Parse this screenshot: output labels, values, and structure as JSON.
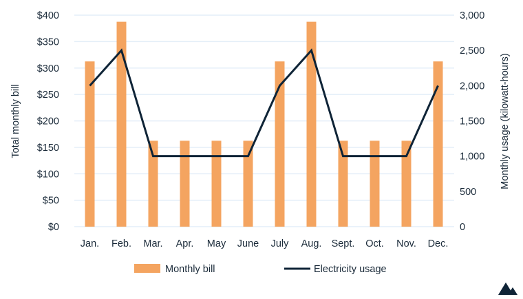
{
  "chart_data": {
    "type": "bar+line",
    "categories": [
      "Jan.",
      "Feb.",
      "Mar.",
      "Apr.",
      "May",
      "June",
      "July",
      "Aug.",
      "Sept.",
      "Oct.",
      "Nov.",
      "Dec."
    ],
    "series": [
      {
        "name": "Monthly bill",
        "type": "bar",
        "axis": "left",
        "color": "#f4a460",
        "values": [
          312.5,
          387.5,
          162.5,
          162.5,
          162.5,
          162.5,
          312.5,
          387.5,
          162.5,
          162.5,
          162.5,
          312.5
        ]
      },
      {
        "name": "Electricity usage",
        "type": "line",
        "axis": "right",
        "color": "#0f2437",
        "values": [
          2000,
          2500,
          1000,
          1000,
          1000,
          1000,
          2000,
          2500,
          1000,
          1000,
          1000,
          2000
        ]
      }
    ],
    "ylabel": "Total monthly bill",
    "y2label": "Monthly usage (kilowatt-hours)",
    "ylim": [
      0,
      400
    ],
    "y2lim": [
      0,
      3000
    ],
    "yticks": [
      "$0",
      "$50",
      "$100",
      "$150",
      "$200",
      "$250",
      "$300",
      "$350",
      "$400"
    ],
    "y2ticks": [
      "0",
      "500",
      "1,000",
      "1,500",
      "2,000",
      "2,500",
      "3,000"
    ],
    "grid": true,
    "legend_position": "bottom",
    "gridColor": "#e3eef8"
  },
  "logo": "mountain-logo"
}
